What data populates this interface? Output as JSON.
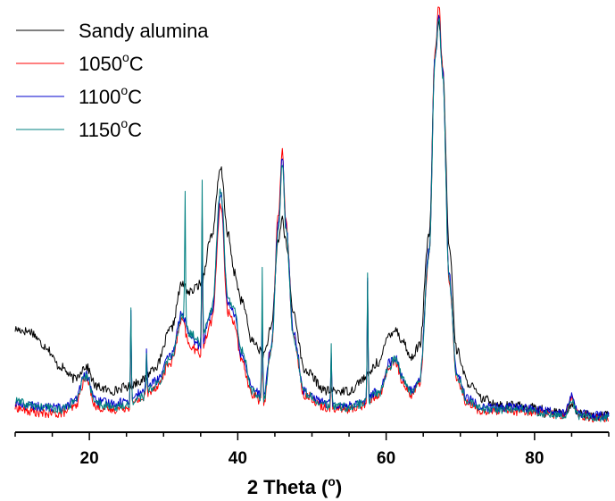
{
  "chart_data": {
    "type": "line",
    "xlabel": "2 Theta (",
    "xlabel_suffix": "o",
    "xlabel_close": ")",
    "xlim": [
      10,
      90
    ],
    "ylim": [
      0,
      100
    ],
    "x_ticks": [
      20,
      40,
      60,
      80
    ],
    "x_tick_labels": [
      "20",
      "40",
      "60",
      "80"
    ],
    "grid": false,
    "legend_position": "top-left",
    "series": [
      {
        "name": "Sandy alumina",
        "name_parts": [
          "Sandy alumina",
          "",
          ""
        ],
        "color": "#000000",
        "points": [
          [
            10,
            22
          ],
          [
            12,
            21.5
          ],
          [
            14,
            18
          ],
          [
            16,
            13
          ],
          [
            18,
            10
          ],
          [
            19.5,
            13
          ],
          [
            21,
            8
          ],
          [
            23,
            7
          ],
          [
            25,
            8
          ],
          [
            27,
            9.5
          ],
          [
            29,
            13
          ],
          [
            31,
            22
          ],
          [
            32.5,
            33
          ],
          [
            33.5,
            31
          ],
          [
            35,
            33
          ],
          [
            36.5,
            45
          ],
          [
            37.7,
            61
          ],
          [
            38.7,
            45
          ],
          [
            39.5,
            36
          ],
          [
            40.5,
            29
          ],
          [
            42,
            19
          ],
          [
            43.5,
            16
          ],
          [
            44.5,
            22
          ],
          [
            45.5,
            44
          ],
          [
            46,
            49
          ],
          [
            46.5,
            43
          ],
          [
            47.5,
            26
          ],
          [
            49,
            12
          ],
          [
            52,
            7
          ],
          [
            55,
            7
          ],
          [
            57,
            10
          ],
          [
            59,
            14
          ],
          [
            60.5,
            21
          ],
          [
            61.2,
            22
          ],
          [
            62.3,
            19
          ],
          [
            63.3,
            15
          ],
          [
            64.5,
            18
          ],
          [
            65.8,
            45
          ],
          [
            66.6,
            88
          ],
          [
            67.1,
            97
          ],
          [
            67.6,
            86
          ],
          [
            68.5,
            42
          ],
          [
            69.5,
            17
          ],
          [
            71,
            9
          ],
          [
            73,
            5
          ],
          [
            76,
            3.5
          ],
          [
            78,
            3.5
          ],
          [
            80,
            3
          ],
          [
            82,
            2
          ],
          [
            84,
            1.5
          ],
          [
            85,
            4
          ],
          [
            86,
            1.5
          ],
          [
            88,
            1
          ],
          [
            90,
            1
          ]
        ],
        "spikes": []
      },
      {
        "name": "1050",
        "name_parts": [
          "1050",
          "o",
          "C"
        ],
        "color": "#ff0000",
        "points": [
          [
            10,
            3
          ],
          [
            12,
            2
          ],
          [
            14,
            1.5
          ],
          [
            16,
            1.5
          ],
          [
            18,
            3
          ],
          [
            19.5,
            10
          ],
          [
            21,
            3
          ],
          [
            23,
            2.5
          ],
          [
            25,
            3
          ],
          [
            27,
            5
          ],
          [
            29,
            8
          ],
          [
            31,
            14
          ],
          [
            32.5,
            24
          ],
          [
            33.5,
            18
          ],
          [
            35,
            16
          ],
          [
            36.5,
            24
          ],
          [
            37.7,
            52
          ],
          [
            38.7,
            26
          ],
          [
            39.5,
            24
          ],
          [
            40.5,
            14
          ],
          [
            42,
            6
          ],
          [
            43.5,
            4
          ],
          [
            44.5,
            17
          ],
          [
            45.5,
            50
          ],
          [
            46,
            66
          ],
          [
            46.5,
            48
          ],
          [
            47.5,
            20
          ],
          [
            49,
            6
          ],
          [
            52,
            3
          ],
          [
            55,
            2.5
          ],
          [
            57,
            3.5
          ],
          [
            59,
            6
          ],
          [
            60.5,
            13
          ],
          [
            61.2,
            14
          ],
          [
            62.3,
            9
          ],
          [
            63.3,
            6
          ],
          [
            64.5,
            9
          ],
          [
            65.8,
            40
          ],
          [
            66.6,
            90
          ],
          [
            67.1,
            101
          ],
          [
            67.6,
            86
          ],
          [
            68.5,
            34
          ],
          [
            69.5,
            10
          ],
          [
            71,
            4
          ],
          [
            73,
            2
          ],
          [
            76,
            2
          ],
          [
            78,
            2
          ],
          [
            80,
            2
          ],
          [
            82,
            1.5
          ],
          [
            84,
            1
          ],
          [
            85,
            5
          ],
          [
            86,
            1
          ],
          [
            88,
            0.5
          ],
          [
            90,
            0.5
          ]
        ],
        "spikes": [
          [
            25.6,
            22
          ],
          [
            35.2,
            34
          ],
          [
            43.3,
            23
          ],
          [
            52.6,
            13
          ],
          [
            57.5,
            30
          ],
          [
            27.7,
            10
          ]
        ]
      },
      {
        "name": "1100",
        "name_parts": [
          "1100",
          "o",
          "C"
        ],
        "color": "#0000cc",
        "points": [
          [
            10,
            4
          ],
          [
            12,
            3.5
          ],
          [
            14,
            3
          ],
          [
            16,
            3
          ],
          [
            18,
            4.5
          ],
          [
            19.5,
            11
          ],
          [
            21,
            4.5
          ],
          [
            23,
            4
          ],
          [
            25,
            4.5
          ],
          [
            27,
            6.5
          ],
          [
            29,
            9.5
          ],
          [
            31,
            15.5
          ],
          [
            32.5,
            26
          ],
          [
            33.5,
            20
          ],
          [
            35,
            18
          ],
          [
            36.5,
            26
          ],
          [
            37.7,
            55
          ],
          [
            38.7,
            28
          ],
          [
            39.5,
            26
          ],
          [
            40.5,
            16
          ],
          [
            42,
            7.5
          ],
          [
            43.5,
            5.5
          ],
          [
            44.5,
            18
          ],
          [
            45.5,
            48
          ],
          [
            46,
            64
          ],
          [
            46.5,
            47
          ],
          [
            47.5,
            21
          ],
          [
            49,
            7
          ],
          [
            52,
            4
          ],
          [
            55,
            3.5
          ],
          [
            57,
            4.5
          ],
          [
            59,
            7
          ],
          [
            60.5,
            14
          ],
          [
            61.2,
            15
          ],
          [
            62.3,
            10
          ],
          [
            63.3,
            7
          ],
          [
            64.5,
            10
          ],
          [
            65.8,
            41
          ],
          [
            66.6,
            89
          ],
          [
            67.1,
            99
          ],
          [
            67.6,
            85
          ],
          [
            68.5,
            35
          ],
          [
            69.5,
            11
          ],
          [
            71,
            5
          ],
          [
            73,
            3
          ],
          [
            76,
            3
          ],
          [
            78,
            3
          ],
          [
            80,
            2.5
          ],
          [
            82,
            2
          ],
          [
            84,
            1.5
          ],
          [
            85,
            5.5
          ],
          [
            86,
            1.5
          ],
          [
            88,
            1
          ],
          [
            90,
            1
          ]
        ],
        "spikes": [
          [
            25.6,
            21
          ],
          [
            35.2,
            33
          ],
          [
            43.3,
            22
          ],
          [
            52.6,
            12
          ],
          [
            57.5,
            29
          ],
          [
            27.7,
            11
          ]
        ]
      },
      {
        "name": "1150",
        "name_parts": [
          "1150",
          "o",
          "C"
        ],
        "color": "#008080",
        "points": [
          [
            10,
            4.5
          ],
          [
            12,
            3.5
          ],
          [
            14,
            3
          ],
          [
            16,
            2.5
          ],
          [
            18,
            4
          ],
          [
            19.5,
            10.5
          ],
          [
            21,
            4
          ],
          [
            23,
            3
          ],
          [
            25,
            3.5
          ],
          [
            27,
            5.5
          ],
          [
            29,
            8.5
          ],
          [
            31,
            15
          ],
          [
            32.5,
            25
          ],
          [
            33.5,
            21
          ],
          [
            35,
            19
          ],
          [
            36.5,
            27
          ],
          [
            37.7,
            56
          ],
          [
            38.7,
            29
          ],
          [
            39.5,
            27
          ],
          [
            40.5,
            17
          ],
          [
            42,
            7
          ],
          [
            43.5,
            5
          ],
          [
            44.5,
            17
          ],
          [
            45.5,
            46
          ],
          [
            46,
            63
          ],
          [
            46.5,
            46
          ],
          [
            47.5,
            20
          ],
          [
            49,
            6.5
          ],
          [
            52,
            3.5
          ],
          [
            55,
            3
          ],
          [
            57,
            4
          ],
          [
            59,
            6.5
          ],
          [
            60.5,
            13
          ],
          [
            61.2,
            15
          ],
          [
            62.3,
            10
          ],
          [
            63.3,
            6.5
          ],
          [
            64.5,
            9.5
          ],
          [
            65.8,
            40
          ],
          [
            66.6,
            88
          ],
          [
            67.1,
            98
          ],
          [
            67.6,
            84
          ],
          [
            68.5,
            34
          ],
          [
            69.5,
            10.5
          ],
          [
            71,
            4.5
          ],
          [
            73,
            2.5
          ],
          [
            76,
            2.5
          ],
          [
            78,
            2.5
          ],
          [
            80,
            2
          ],
          [
            82,
            1.5
          ],
          [
            84,
            1
          ],
          [
            85,
            4.5
          ],
          [
            86,
            1
          ],
          [
            88,
            0.5
          ],
          [
            90,
            0.5
          ]
        ],
        "spikes": [
          [
            25.6,
            23
          ],
          [
            32.9,
            31
          ],
          [
            35.2,
            38
          ],
          [
            43.3,
            31
          ],
          [
            52.6,
            14
          ],
          [
            57.5,
            32
          ],
          [
            27.7,
            10
          ]
        ]
      }
    ]
  }
}
